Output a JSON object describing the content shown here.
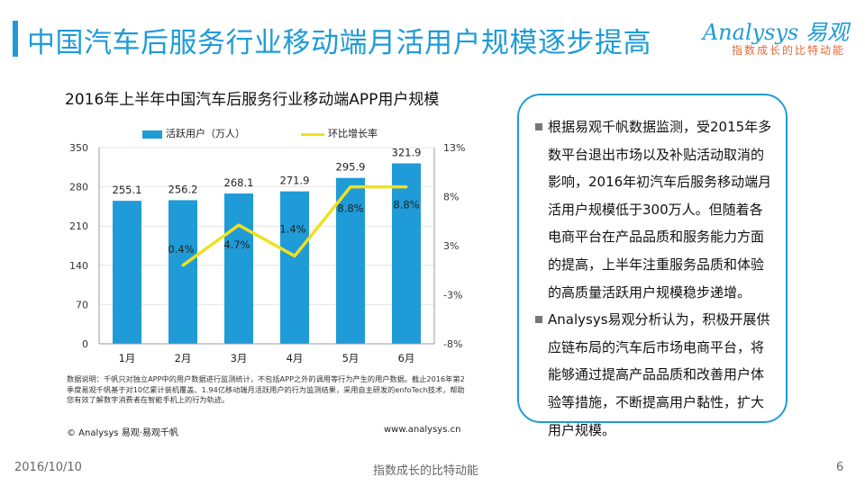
{
  "page": {
    "title": "中国汽车后服务行业移动端月活用户规模逐步提高",
    "logo": {
      "brand": "Analysys 易观",
      "slogan": "指数成长的比特动能"
    },
    "footer": {
      "date": "2016/10/10",
      "slogan": "指数成长的比特动能",
      "page_number": "6"
    },
    "note": "数据说明：千帆只对独立APP中的用户数据进行监测统计，不包括APP之外的调用等行为产生的用户数据。截止2016年第2季度易观千帆基于对10亿累计装机覆盖、1.94亿移动端月活跃用户的行为监测结果，采用自主研发的enfoTech技术，帮助您有效了解数字消费者在智能手机上的行为轨迹。",
    "copyright": "© Analysys 易观·易观千帆",
    "website": "www.analysys.cn",
    "sidebar": {
      "paragraphs": [
        "根据易观千帆数据监测，受2015年多数平台退出市场以及补贴活动取消的影响，2016年初汽车后服务移动端月活用户规模低于300万人。但随着各电商平台在产品品质和服务能力方面的提高，上半年注重服务品质和体验的高质量活跃用户规模稳步递增。",
        "Analysys易观分析认为，积极开展供应链布局的汽车后市场电商平台，将能够通过提高产品品质和改善用户体验等措施，不断提高用户黏性，扩大用户规模。"
      ]
    },
    "colors": {
      "accent": "#1f9bd7",
      "bar": "#1f9bd7",
      "line": "#f0e020",
      "slogan": "#e06a3a"
    }
  },
  "chart_data": {
    "type": "bar",
    "title": "2016年上半年中国汽车后服务行业移动端APP用户规模",
    "categories": [
      "1月",
      "2月",
      "3月",
      "4月",
      "5月",
      "6月"
    ],
    "series": [
      {
        "name": "活跃用户（万人）",
        "type": "bar",
        "axis": "left",
        "values": [
          255.1,
          256.2,
          268.1,
          271.9,
          295.9,
          321.9
        ],
        "labels": [
          "255.1",
          "256.2",
          "268.1",
          "271.9",
          "295.9",
          "321.9"
        ]
      },
      {
        "name": "环比增长率",
        "type": "line",
        "axis": "right",
        "values": [
          null,
          0.4,
          4.7,
          1.4,
          8.8,
          8.8
        ],
        "labels": [
          "",
          "0.4%",
          "4.7%",
          "1.4%",
          "8.8%",
          "8.8%"
        ]
      }
    ],
    "y_left": {
      "min": 0,
      "max": 350,
      "ticks": [
        "0",
        "70",
        "140",
        "210",
        "280",
        "350"
      ]
    },
    "y_right": {
      "min": -8,
      "max": 13,
      "ticks": [
        "-8%",
        "-3%",
        "3%",
        "8%",
        "13%"
      ]
    }
  }
}
